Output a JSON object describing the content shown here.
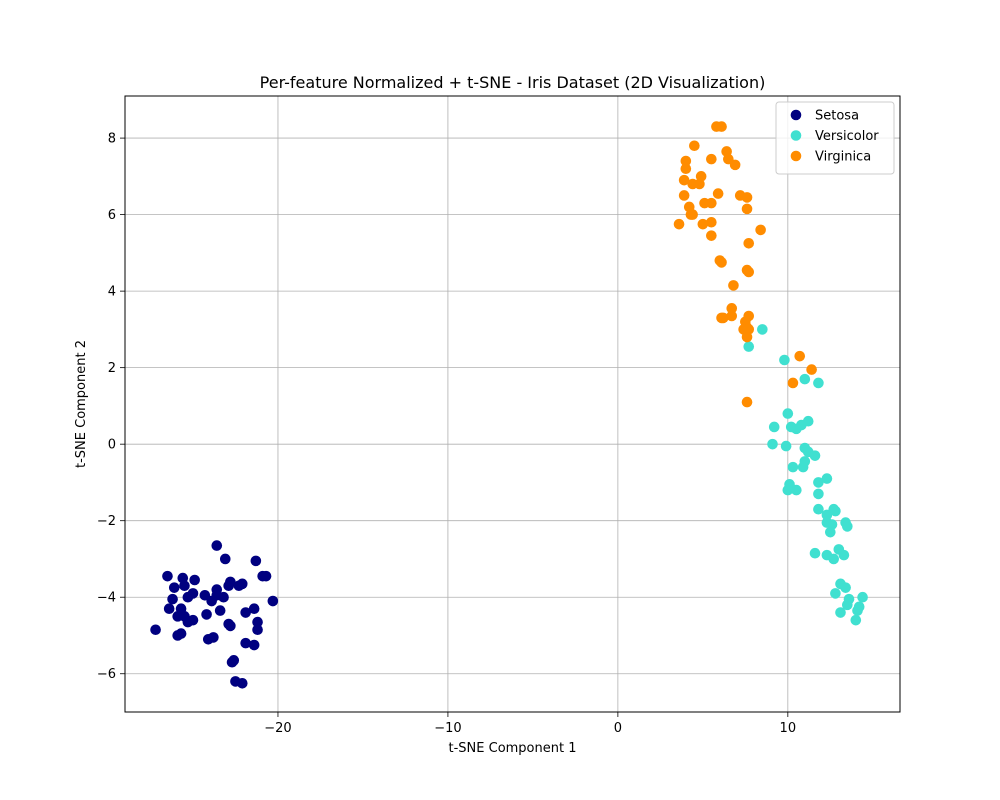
{
  "chart_data": {
    "type": "scatter",
    "title": "Per-feature Normalized + t-SNE - Iris Dataset (2D Visualization)",
    "xlabel": "t-SNE Component 1",
    "ylabel": "t-SNE Component 2",
    "xlim": [
      -29,
      16.6
    ],
    "ylim": [
      -7,
      9.1
    ],
    "xticks": [
      -20,
      -10,
      0,
      10
    ],
    "yticks": [
      -6,
      -4,
      -2,
      0,
      2,
      4,
      6,
      8
    ],
    "xtick_labels": [
      "−20",
      "−10",
      "0",
      "10"
    ],
    "ytick_labels": [
      "−6",
      "−4",
      "−2",
      "0",
      "2",
      "4",
      "6",
      "8"
    ],
    "grid": true,
    "legend": "top-right",
    "series": [
      {
        "name": "Setosa",
        "color": "#000080",
        "points": [
          [
            -23.6,
            -2.65
          ],
          [
            -23.1,
            -3.0
          ],
          [
            -21.3,
            -3.05
          ],
          [
            -26.5,
            -3.45
          ],
          [
            -25.6,
            -3.5
          ],
          [
            -24.9,
            -3.55
          ],
          [
            -22.8,
            -3.6
          ],
          [
            -22.1,
            -3.65
          ],
          [
            -20.9,
            -3.45
          ],
          [
            -20.7,
            -3.45
          ],
          [
            -26.1,
            -3.75
          ],
          [
            -25.5,
            -3.7
          ],
          [
            -23.6,
            -3.8
          ],
          [
            -22.9,
            -3.7
          ],
          [
            -22.3,
            -3.7
          ],
          [
            -25.0,
            -3.9
          ],
          [
            -24.3,
            -3.95
          ],
          [
            -23.9,
            -4.1
          ],
          [
            -23.2,
            -4.0
          ],
          [
            -23.6,
            -3.95
          ],
          [
            -26.2,
            -4.05
          ],
          [
            -25.3,
            -4.0
          ],
          [
            -21.9,
            -4.4
          ],
          [
            -20.3,
            -4.1
          ],
          [
            -26.4,
            -4.3
          ],
          [
            -25.7,
            -4.3
          ],
          [
            -24.2,
            -4.45
          ],
          [
            -23.4,
            -4.35
          ],
          [
            -21.4,
            -4.3
          ],
          [
            -25.9,
            -4.5
          ],
          [
            -25.5,
            -4.5
          ],
          [
            -25.0,
            -4.6
          ],
          [
            -25.3,
            -4.65
          ],
          [
            -22.9,
            -4.7
          ],
          [
            -22.8,
            -4.75
          ],
          [
            -21.2,
            -4.65
          ],
          [
            -21.2,
            -4.85
          ],
          [
            -27.2,
            -4.85
          ],
          [
            -25.7,
            -4.95
          ],
          [
            -25.9,
            -5.0
          ],
          [
            -24.1,
            -5.1
          ],
          [
            -23.8,
            -5.05
          ],
          [
            -21.9,
            -5.2
          ],
          [
            -21.4,
            -5.25
          ],
          [
            -22.6,
            -5.65
          ],
          [
            -22.7,
            -5.7
          ],
          [
            -22.5,
            -6.2
          ],
          [
            -22.1,
            -6.25
          ]
        ]
      },
      {
        "name": "Versicolor",
        "color": "#40E0D0",
        "points": [
          [
            8.5,
            3.0
          ],
          [
            7.7,
            2.55
          ],
          [
            9.8,
            2.2
          ],
          [
            11.0,
            1.7
          ],
          [
            11.8,
            1.6
          ],
          [
            10.0,
            0.8
          ],
          [
            11.2,
            0.6
          ],
          [
            10.8,
            0.5
          ],
          [
            9.2,
            0.45
          ],
          [
            10.2,
            0.45
          ],
          [
            10.5,
            0.4
          ],
          [
            9.1,
            0.0
          ],
          [
            9.9,
            -0.05
          ],
          [
            11.0,
            -0.1
          ],
          [
            11.2,
            -0.2
          ],
          [
            11.6,
            -0.3
          ],
          [
            11.0,
            -0.45
          ],
          [
            10.3,
            -0.6
          ],
          [
            10.9,
            -0.6
          ],
          [
            12.3,
            -0.9
          ],
          [
            11.8,
            -1.0
          ],
          [
            10.1,
            -1.05
          ],
          [
            10.5,
            -1.2
          ],
          [
            10.0,
            -1.2
          ],
          [
            11.8,
            -1.3
          ],
          [
            11.8,
            -1.7
          ],
          [
            12.7,
            -1.7
          ],
          [
            12.8,
            -1.75
          ],
          [
            12.3,
            -1.85
          ],
          [
            12.3,
            -2.05
          ],
          [
            12.6,
            -2.1
          ],
          [
            13.4,
            -2.05
          ],
          [
            13.5,
            -2.15
          ],
          [
            12.5,
            -2.3
          ],
          [
            13.0,
            -2.75
          ],
          [
            11.6,
            -2.85
          ],
          [
            12.3,
            -2.9
          ],
          [
            13.3,
            -2.9
          ],
          [
            12.7,
            -3.0
          ],
          [
            13.1,
            -3.65
          ],
          [
            13.4,
            -3.75
          ],
          [
            12.8,
            -3.9
          ],
          [
            14.4,
            -4.0
          ],
          [
            13.6,
            -4.05
          ],
          [
            13.5,
            -4.2
          ],
          [
            14.2,
            -4.25
          ],
          [
            14.1,
            -4.35
          ],
          [
            13.1,
            -4.4
          ],
          [
            14.0,
            -4.6
          ]
        ]
      },
      {
        "name": "Virginica",
        "color": "#FF8C00",
        "points": [
          [
            5.8,
            8.3
          ],
          [
            6.1,
            8.3
          ],
          [
            4.5,
            7.8
          ],
          [
            6.4,
            7.65
          ],
          [
            4.0,
            7.4
          ],
          [
            6.5,
            7.45
          ],
          [
            5.5,
            7.45
          ],
          [
            6.9,
            7.3
          ],
          [
            4.0,
            7.2
          ],
          [
            4.9,
            7.0
          ],
          [
            3.9,
            6.9
          ],
          [
            4.4,
            6.8
          ],
          [
            4.8,
            6.8
          ],
          [
            5.9,
            6.55
          ],
          [
            3.9,
            6.5
          ],
          [
            7.2,
            6.5
          ],
          [
            7.6,
            6.45
          ],
          [
            5.1,
            6.3
          ],
          [
            5.5,
            6.3
          ],
          [
            4.2,
            6.2
          ],
          [
            7.6,
            6.15
          ],
          [
            4.3,
            6.0
          ],
          [
            4.4,
            6.0
          ],
          [
            3.6,
            5.75
          ],
          [
            5.0,
            5.75
          ],
          [
            5.5,
            5.8
          ],
          [
            8.4,
            5.6
          ],
          [
            5.5,
            5.45
          ],
          [
            7.7,
            5.25
          ],
          [
            6.0,
            4.8
          ],
          [
            6.1,
            4.75
          ],
          [
            7.6,
            4.55
          ],
          [
            7.7,
            4.5
          ],
          [
            6.8,
            4.15
          ],
          [
            6.7,
            3.55
          ],
          [
            6.1,
            3.3
          ],
          [
            6.2,
            3.3
          ],
          [
            6.7,
            3.35
          ],
          [
            7.7,
            3.35
          ],
          [
            7.5,
            3.2
          ],
          [
            7.6,
            3.05
          ],
          [
            7.4,
            3.0
          ],
          [
            7.7,
            3.0
          ],
          [
            7.6,
            2.8
          ],
          [
            10.7,
            2.3
          ],
          [
            11.4,
            1.95
          ],
          [
            10.3,
            1.6
          ],
          [
            7.6,
            1.1
          ]
        ]
      }
    ]
  }
}
